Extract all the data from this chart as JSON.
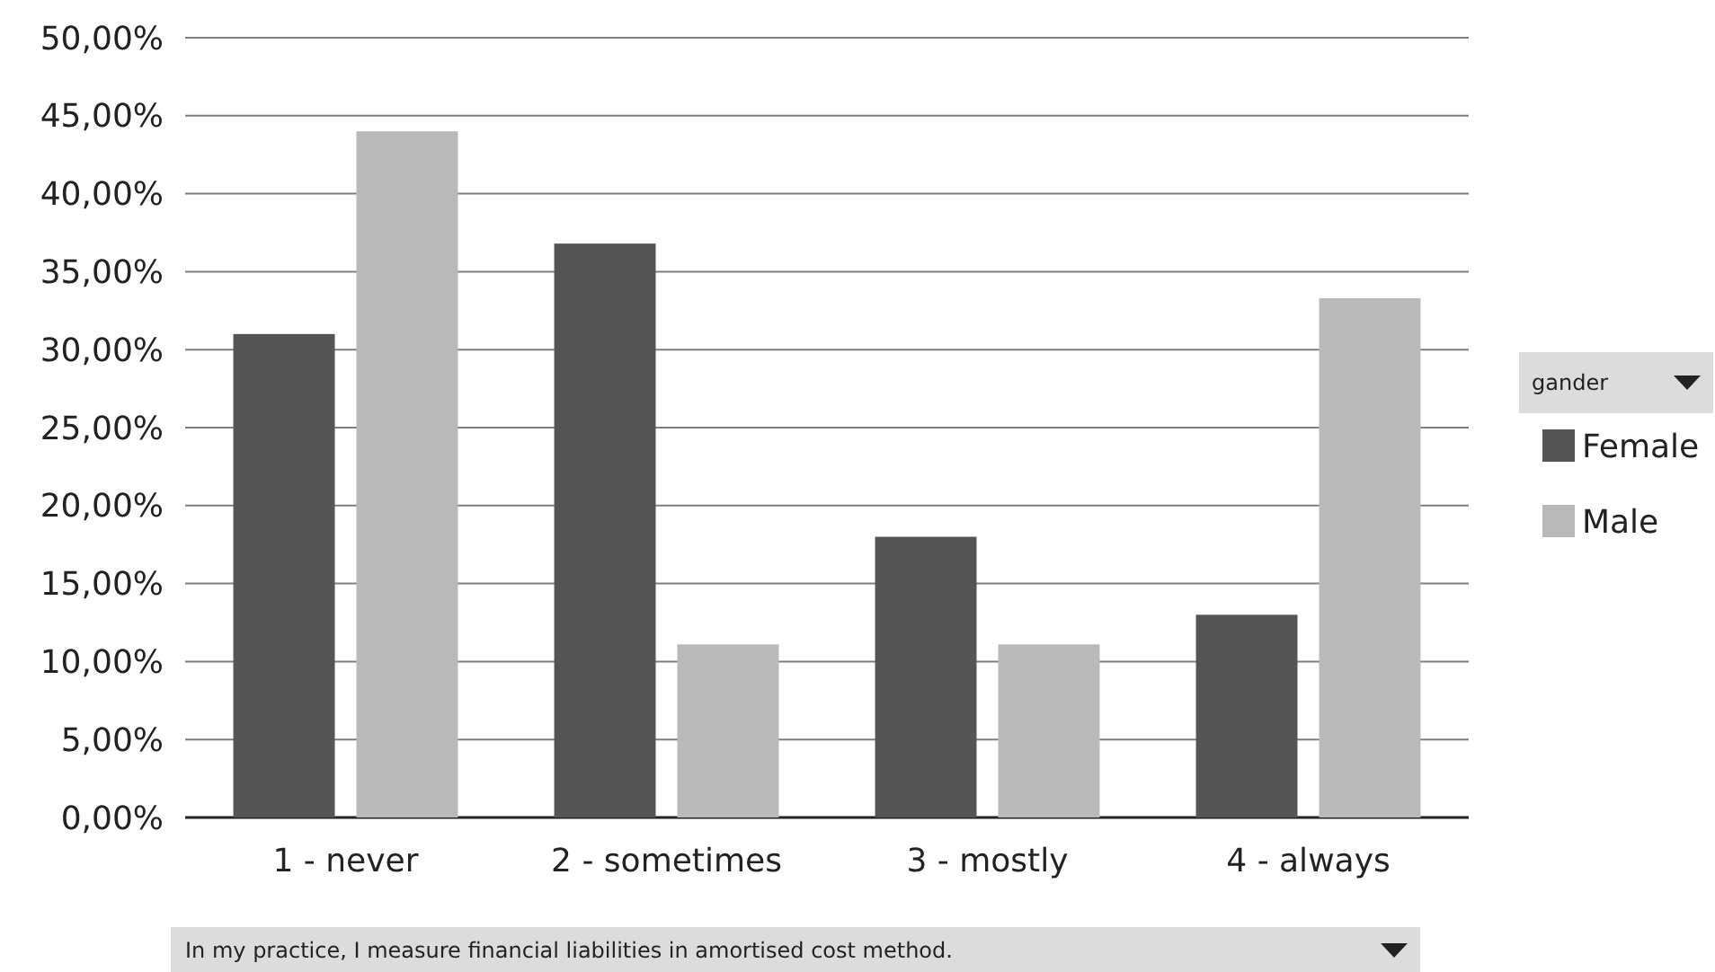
{
  "chart_data": {
    "type": "bar",
    "legend_title": "gander",
    "categories": [
      "1 - never",
      "2 - sometimes",
      "3 - mostly",
      "4 - always"
    ],
    "series": [
      {
        "name": "Female",
        "color": "#545557",
        "values": [
          31.0,
          36.8,
          18.0,
          13.0
        ]
      },
      {
        "name": "Male",
        "color": "#b9b9bc",
        "values": [
          44.0,
          11.1,
          11.1,
          33.3
        ]
      }
    ],
    "ylim": [
      0,
      50
    ],
    "yticks": [
      {
        "value": 0,
        "label": "0,00%"
      },
      {
        "value": 5,
        "label": "5,00%"
      },
      {
        "value": 10,
        "label": "10,00%"
      },
      {
        "value": 15,
        "label": "15,00%"
      },
      {
        "value": 20,
        "label": "20,00%"
      },
      {
        "value": 25,
        "label": "25,00%"
      },
      {
        "value": 30,
        "label": "30,00%"
      },
      {
        "value": 35,
        "label": "35,00%"
      },
      {
        "value": 40,
        "label": "40,00%"
      },
      {
        "value": 45,
        "label": "45,00%"
      },
      {
        "value": 50,
        "label": "50,00%"
      }
    ],
    "grid": "y",
    "legend": "right",
    "annotations": [
      "In my practice, I measure financial liabilities in amortised cost method."
    ]
  }
}
